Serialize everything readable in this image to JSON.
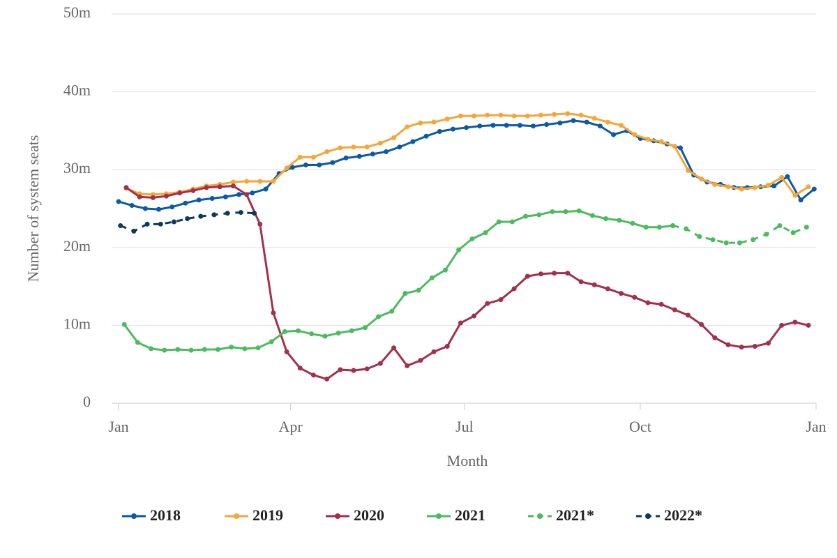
{
  "chart_data": {
    "type": "line",
    "x_label": "Month",
    "y_label": "Number of system seats",
    "xlim": [
      0,
      365
    ],
    "ylim": [
      0,
      50
    ],
    "xticks": [
      {
        "value": 0,
        "label": "Jan"
      },
      {
        "value": 90,
        "label": "Apr"
      },
      {
        "value": 181,
        "label": "Jul"
      },
      {
        "value": 273,
        "label": "Oct"
      },
      {
        "value": 365,
        "label": "Jan"
      }
    ],
    "yticks": [
      0,
      {
        "value": 10,
        "label": "10m"
      },
      {
        "value": 20,
        "label": "20m"
      },
      {
        "value": 30,
        "label": "30m"
      },
      {
        "value": 40,
        "label": "40m"
      },
      {
        "value": 50,
        "label": "50m"
      }
    ],
    "grid": true,
    "legend": "bottom",
    "series": [
      {
        "name": "2018",
        "color": "#0b5aa3",
        "dashed": false,
        "x": [
          0,
          7,
          14,
          21,
          28,
          35,
          42,
          49,
          56,
          63,
          70,
          77,
          84,
          91,
          98,
          105,
          112,
          119,
          126,
          133,
          140,
          147,
          154,
          161,
          168,
          175,
          182,
          189,
          196,
          203,
          210,
          217,
          224,
          231,
          238,
          245,
          252,
          259,
          266,
          273,
          280,
          287,
          294,
          301,
          308,
          315,
          322,
          329,
          336,
          343,
          350,
          357,
          364
        ],
        "values": [
          25.9,
          25.4,
          25.0,
          24.9,
          25.2,
          25.7,
          26.1,
          26.3,
          26.5,
          26.8,
          27.0,
          27.5,
          29.5,
          30.3,
          30.6,
          30.6,
          30.9,
          31.5,
          31.7,
          32.0,
          32.3,
          32.9,
          33.6,
          34.3,
          34.9,
          35.2,
          35.4,
          35.6,
          35.7,
          35.7,
          35.7,
          35.6,
          35.8,
          36.0,
          36.3,
          36.1,
          35.6,
          34.5,
          35.0,
          34.0,
          33.7,
          33.3,
          32.8,
          29.3,
          28.4,
          28.1,
          27.7,
          27.7,
          27.8,
          27.9,
          29.1,
          26.1,
          27.5
        ]
      },
      {
        "name": "2019",
        "color": "#f5a637",
        "dashed": false,
        "x": [
          4,
          11,
          18,
          25,
          32,
          39,
          46,
          53,
          60,
          67,
          74,
          81,
          88,
          95,
          102,
          109,
          116,
          123,
          130,
          137,
          144,
          151,
          158,
          165,
          172,
          179,
          186,
          193,
          200,
          207,
          214,
          221,
          228,
          235,
          242,
          249,
          256,
          263,
          270,
          277,
          284,
          291,
          298,
          305,
          312,
          319,
          326,
          333,
          340,
          347,
          354,
          361
        ],
        "values": [
          27.6,
          26.9,
          26.8,
          26.9,
          27.1,
          27.5,
          27.9,
          28.1,
          28.4,
          28.5,
          28.5,
          28.5,
          30.2,
          31.6,
          31.6,
          32.3,
          32.8,
          32.9,
          32.9,
          33.4,
          34.1,
          35.5,
          36.0,
          36.1,
          36.5,
          36.9,
          36.9,
          37.0,
          37.0,
          36.9,
          36.9,
          37.0,
          37.1,
          37.2,
          37.0,
          36.6,
          36.1,
          35.7,
          34.5,
          33.9,
          33.6,
          33.0,
          29.9,
          28.8,
          28.1,
          27.8,
          27.5,
          27.7,
          28.0,
          29.0,
          26.7,
          27.8
        ]
      },
      {
        "name": "2020",
        "color": "#a3304a",
        "dashed": false,
        "x": [
          4,
          11,
          18,
          25,
          32,
          39,
          46,
          53,
          60,
          67,
          74,
          81,
          88,
          95,
          102,
          109,
          116,
          123,
          130,
          137,
          144,
          151,
          158,
          165,
          172,
          179,
          186,
          193,
          200,
          207,
          214,
          221,
          228,
          235,
          242,
          249,
          256,
          263,
          270,
          277,
          284,
          291,
          298,
          305,
          312,
          319,
          326,
          333,
          340,
          347,
          354,
          361
        ],
        "values": [
          27.7,
          26.5,
          26.4,
          26.6,
          27.0,
          27.3,
          27.7,
          27.8,
          27.9,
          26.8,
          23.0,
          11.6,
          6.6,
          4.5,
          3.6,
          3.1,
          4.3,
          4.2,
          4.4,
          5.1,
          7.1,
          4.8,
          5.5,
          6.6,
          7.3,
          10.3,
          11.2,
          12.8,
          13.3,
          14.7,
          16.3,
          16.6,
          16.7,
          16.7,
          15.6,
          15.2,
          14.7,
          14.1,
          13.6,
          12.9,
          12.7,
          12.0,
          11.3,
          10.1,
          8.4,
          7.5,
          7.2,
          7.3,
          7.7,
          10.0,
          10.4,
          10.0
        ]
      },
      {
        "name": "2021",
        "color": "#4cbb5e",
        "dashed": false,
        "x": [
          3,
          10,
          17,
          24,
          31,
          38,
          45,
          52,
          59,
          66,
          73,
          80,
          87,
          94,
          101,
          108,
          115,
          122,
          129,
          136,
          143,
          150,
          157,
          164,
          171,
          178,
          185,
          192,
          199,
          206,
          213,
          220,
          227,
          234,
          241,
          248,
          255,
          262,
          269,
          276,
          283,
          290
        ],
        "values": [
          10.1,
          7.8,
          7.0,
          6.8,
          6.9,
          6.8,
          6.9,
          6.9,
          7.2,
          7.0,
          7.1,
          7.9,
          9.2,
          9.3,
          8.9,
          8.6,
          9.0,
          9.3,
          9.7,
          11.1,
          11.8,
          14.1,
          14.5,
          16.1,
          17.1,
          19.7,
          21.1,
          21.9,
          23.3,
          23.3,
          24.0,
          24.2,
          24.6,
          24.6,
          24.7,
          24.1,
          23.7,
          23.5,
          23.1,
          22.6,
          22.6,
          22.8
        ]
      },
      {
        "name": "2021*",
        "color": "#4cbb5e",
        "dashed": true,
        "x": [
          290,
          297,
          304,
          311,
          318,
          325,
          332,
          339,
          346,
          353,
          360
        ],
        "values": [
          22.8,
          22.4,
          21.4,
          21.0,
          20.6,
          20.6,
          21.0,
          21.7,
          22.8,
          21.9,
          22.6
        ]
      },
      {
        "name": "2022*",
        "color": "#0d3a56",
        "dashed": true,
        "x": [
          1,
          8,
          15,
          22,
          29,
          36,
          43,
          50,
          57,
          64,
          71
        ],
        "values": [
          22.8,
          22.1,
          23.0,
          23.0,
          23.3,
          23.7,
          24.0,
          24.2,
          24.4,
          24.5,
          24.4
        ]
      }
    ]
  }
}
